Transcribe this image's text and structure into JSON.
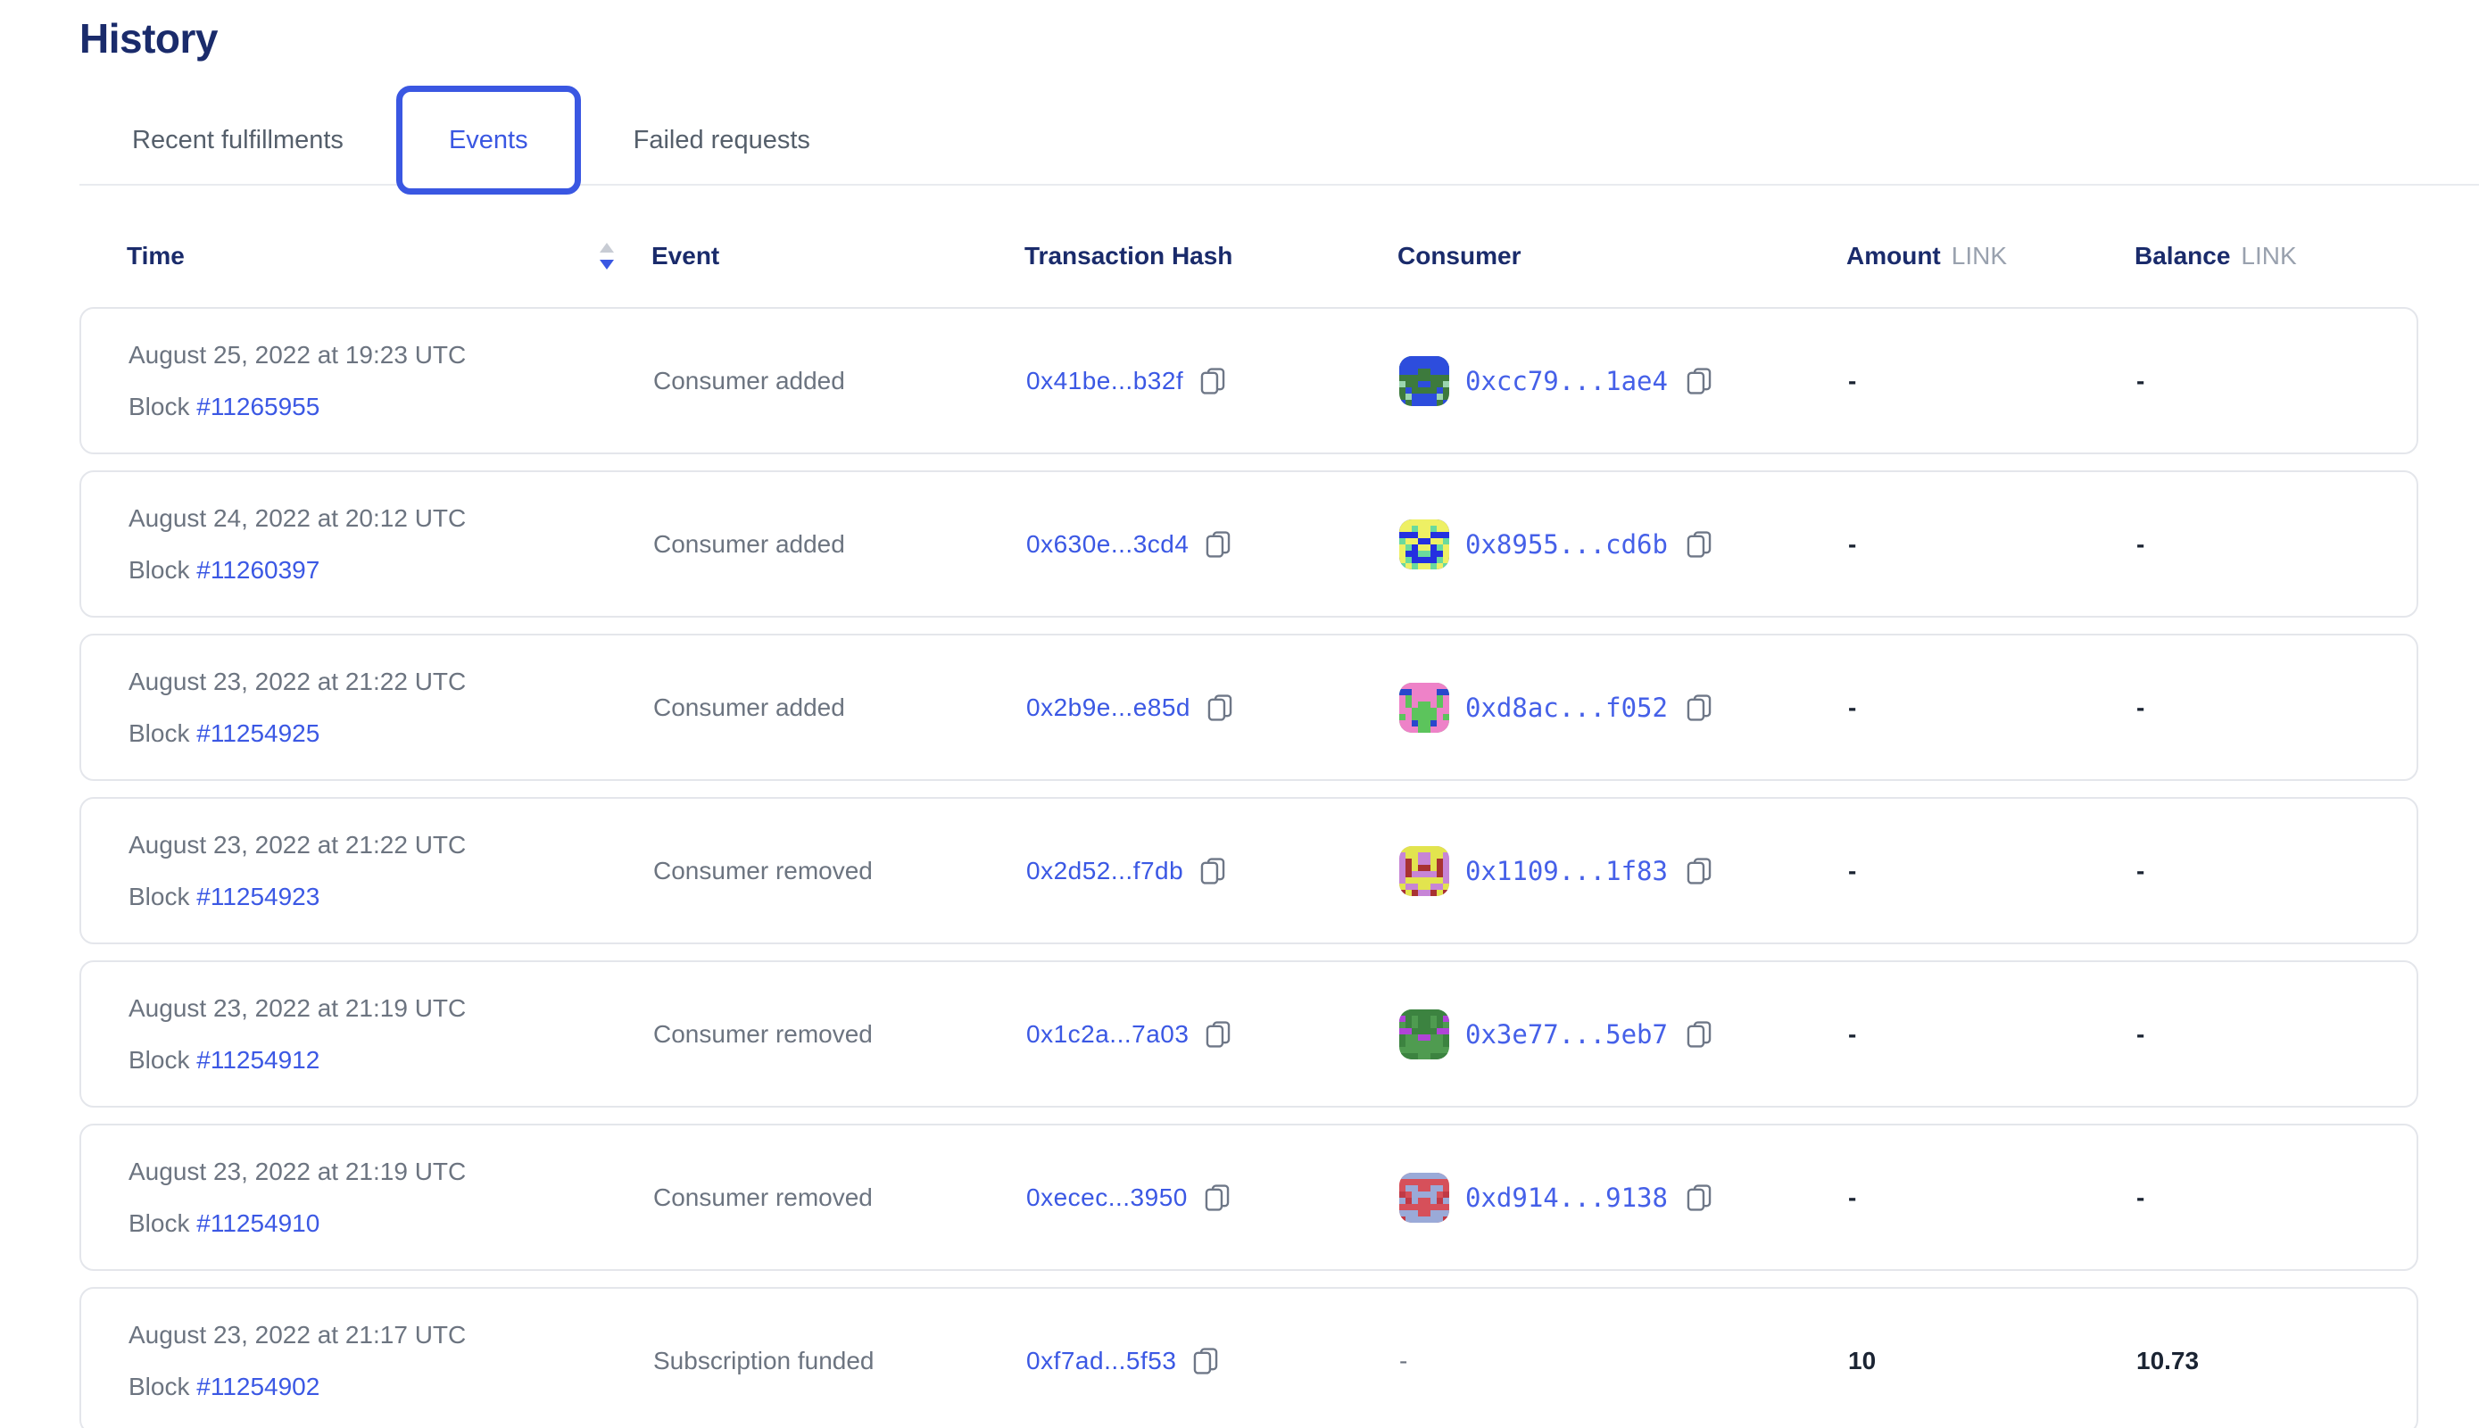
{
  "page": {
    "title": "History"
  },
  "tabs": [
    {
      "label": "Recent fulfillments",
      "active": false
    },
    {
      "label": "Events",
      "active": true
    },
    {
      "label": "Failed requests",
      "active": false
    }
  ],
  "icons": {
    "sort": "sort-descending (up triangle light, down triangle blue)",
    "copy": "copy-outline (two overlapping rounded squares)"
  },
  "colors": {
    "heading": "#1a2b6b",
    "accent_blue": "#3a57e2",
    "link_blue": "#3b58e4",
    "consumer_link": "#4560e8",
    "muted_text": "#6c7480",
    "header_unit": "#99a1ae",
    "card_border": "#e4e6eb",
    "sort_up": "#c8ccd4",
    "sort_down": "#3a57e2",
    "value_dark": "#1b2433"
  },
  "table": {
    "headers": {
      "time": "Time",
      "event": "Event",
      "tx": "Transaction Hash",
      "consumer": "Consumer",
      "amount": "Amount",
      "balance": "Balance",
      "unit": "LINK"
    },
    "block_label": "Block",
    "rows": [
      {
        "date": "August 25, 2022 at 19:23 UTC",
        "block": "#11265955",
        "event": "Consumer added",
        "tx": "0x41be...b32f",
        "consumer": "0xcc79...1ae4",
        "amount": "-",
        "balance": "-",
        "avatar": {
          "bg": "#3d7a3d",
          "fg": "#2d4ddd",
          "spot": "#9cd6b0"
        }
      },
      {
        "date": "August 24, 2022 at 20:12 UTC",
        "block": "#11260397",
        "event": "Consumer added",
        "tx": "0x630e...3cd4",
        "consumer": "0x8955...cd6b",
        "amount": "-",
        "balance": "-",
        "avatar": {
          "bg": "#2430e0",
          "fg": "#eef064",
          "spot": "#6ada9d"
        }
      },
      {
        "date": "August 23, 2022 at 21:22 UTC",
        "block": "#11254925",
        "event": "Consumer added",
        "tx": "0x2b9e...e85d",
        "consumer": "0xd8ac...f052",
        "amount": "-",
        "balance": "-",
        "avatar": {
          "bg": "#5cc45c",
          "fg": "#ee82c8",
          "spot": "#2847cc"
        }
      },
      {
        "date": "August 23, 2022 at 21:22 UTC",
        "block": "#11254923",
        "event": "Consumer removed",
        "tx": "0x2d52...f7db",
        "consumer": "0x1109...1f83",
        "amount": "-",
        "balance": "-",
        "avatar": {
          "bg": "#c785d6",
          "fg": "#e2e44e",
          "spot": "#a83232"
        }
      },
      {
        "date": "August 23, 2022 at 21:19 UTC",
        "block": "#11254912",
        "event": "Consumer removed",
        "tx": "0x1c2a...7a03",
        "consumer": "0x3e77...5eb7",
        "amount": "-",
        "balance": "-",
        "avatar": {
          "bg": "#4f9b50",
          "fg": "#3c8340",
          "spot": "#b044d8"
        }
      },
      {
        "date": "August 23, 2022 at 21:19 UTC",
        "block": "#11254910",
        "event": "Consumer removed",
        "tx": "0xecec...3950",
        "consumer": "0xd914...9138",
        "amount": "-",
        "balance": "-",
        "avatar": {
          "bg": "#d6505a",
          "fg": "#9aaad8",
          "spot": "#c03a46"
        }
      },
      {
        "date": "August 23, 2022 at 21:17 UTC",
        "block": "#11254902",
        "event": "Subscription funded",
        "tx": "0xf7ad...5f53",
        "consumer": "-",
        "amount": "10",
        "balance": "10.73",
        "avatar": null
      }
    ]
  }
}
